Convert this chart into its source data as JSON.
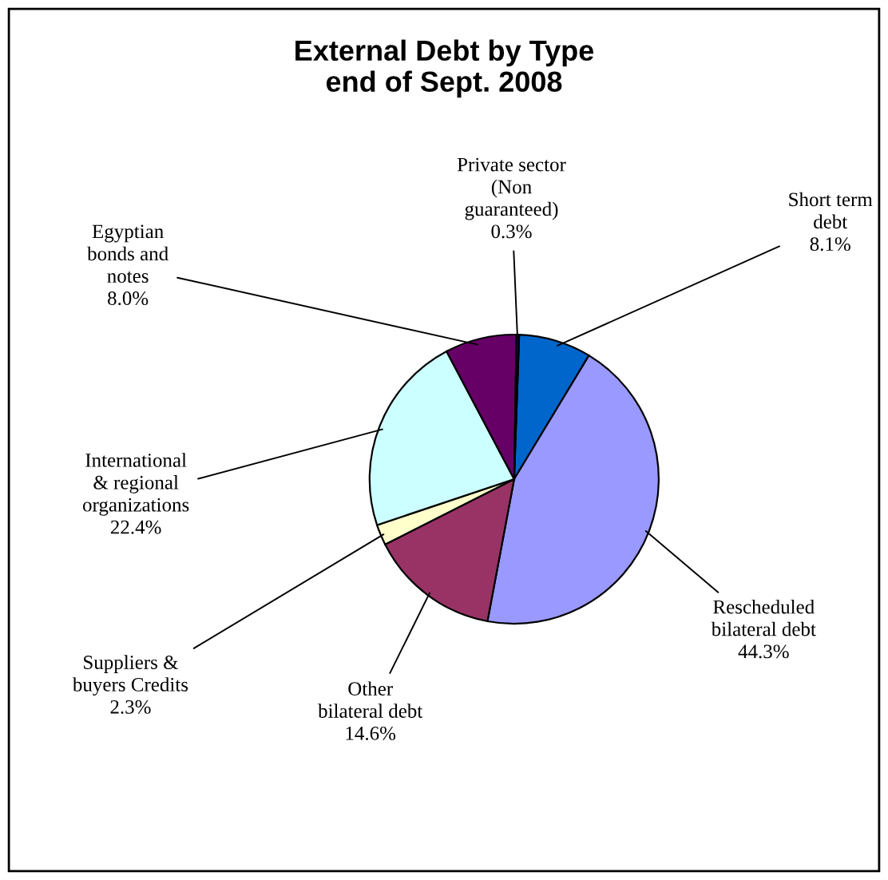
{
  "chart_data": {
    "type": "pie",
    "title": "External Debt by Type\nend of Sept. 2008",
    "categories": [
      "Short term\ndebt",
      "Rescheduled\nbilateral debt",
      "Other\nbilateral debt",
      "Suppliers &\nbuyers Credits",
      "International\n& regional\norganizations",
      "Egyptian\nbonds and\nnotes",
      "Private sector\n(Non\nguaranteed)"
    ],
    "values": [
      8.1,
      44.3,
      14.6,
      2.3,
      22.4,
      8.0,
      0.3
    ],
    "value_labels": [
      "8.1%",
      "44.3%",
      "14.6%",
      "2.3%",
      "22.4%",
      "8.0%",
      "0.3%"
    ],
    "colors": [
      "#0066cc",
      "#9999ff",
      "#993366",
      "#ffffcc",
      "#ccffff",
      "#660066",
      "#000080"
    ],
    "legend": false
  }
}
